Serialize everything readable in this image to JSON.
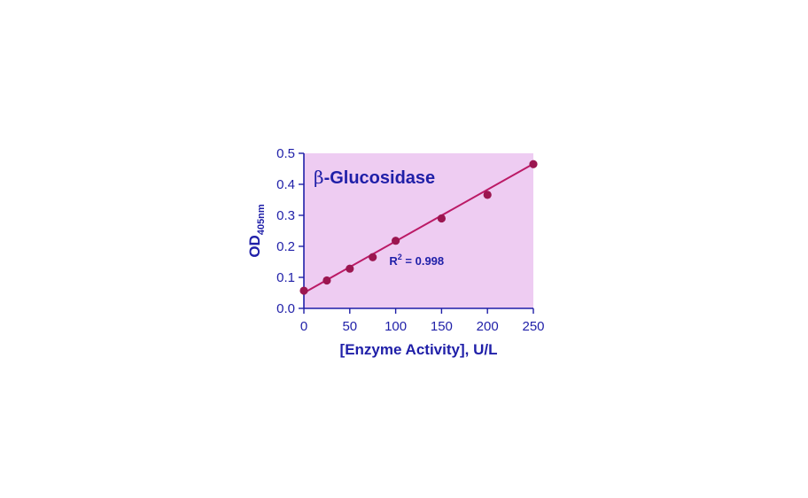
{
  "chart_data": {
    "type": "scatter",
    "title": "β-Glucosidase",
    "title_symbol": "β",
    "title_text": "-Glucosidase",
    "xlabel": "[Enzyme Activity], U/L",
    "ylabel_main": "OD",
    "ylabel_subscript": "405nm",
    "xlim": [
      0,
      250
    ],
    "ylim": [
      0,
      0.5
    ],
    "xticks": [
      0,
      50,
      100,
      150,
      200,
      250
    ],
    "xtick_labels": [
      "0",
      "50",
      "100",
      "150",
      "200",
      "250"
    ],
    "yticks": [
      0,
      0.1,
      0.2,
      0.3,
      0.4,
      0.5
    ],
    "ytick_labels": [
      "0.0",
      "0.1",
      "0.2",
      "0.3",
      "0.4",
      "0.5"
    ],
    "series": [
      {
        "x": [
          0,
          25,
          50,
          75,
          100,
          150,
          200,
          250
        ],
        "y": [
          0.057,
          0.09,
          0.128,
          0.165,
          0.218,
          0.29,
          0.366,
          0.465
        ]
      }
    ],
    "fit_line": {
      "x": [
        0,
        250
      ],
      "y": [
        0.05,
        0.466
      ]
    },
    "annotation": {
      "label": "R",
      "superscript": "2",
      "value_text": " = 0.998",
      "x": 150,
      "y": 0.155
    },
    "grid": false,
    "legend": "none",
    "colors": {
      "plot_background": "#eeccf2",
      "axis": "#1f1fa8",
      "text": "#1f1fa8",
      "line": "#bb1a66",
      "marker": "#9b1650"
    }
  }
}
